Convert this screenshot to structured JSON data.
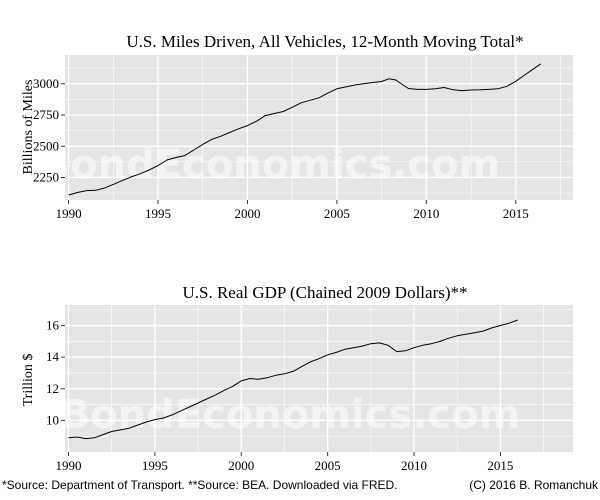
{
  "watermark": "BondEconomics.com",
  "footer": {
    "source": "*Source: Department of Transport. **Source: BEA. Downloaded via FRED.",
    "credit": "(C) 2016 B. Romanchuk"
  },
  "colors": {
    "panel": "#e5e5e5",
    "grid": "#ffffff",
    "line": "#000000"
  },
  "chart_data": [
    {
      "type": "line",
      "title": "U.S. Miles Driven, All Vehicles, 12-Month Moving Total*",
      "xlabel": "",
      "ylabel": "Billions of Miles",
      "xlim": [
        1989.8,
        2018.2
      ],
      "ylim": [
        2070,
        3230
      ],
      "xticks": [
        1990,
        1995,
        2000,
        2005,
        2010,
        2015
      ],
      "yticks": [
        2250,
        2500,
        2750,
        3000
      ],
      "series": [
        {
          "name": "Miles Driven",
          "x": [
            1990.0,
            1990.5,
            1991.0,
            1991.5,
            1992.0,
            1992.5,
            1993.0,
            1993.5,
            1994.0,
            1994.5,
            1995.0,
            1995.5,
            1996.0,
            1996.5,
            1997.0,
            1997.5,
            1998.0,
            1998.5,
            1999.0,
            1999.5,
            2000.0,
            2000.5,
            2001.0,
            2001.5,
            2002.0,
            2002.5,
            2003.0,
            2003.5,
            2004.0,
            2004.5,
            2005.0,
            2005.5,
            2006.0,
            2006.5,
            2007.0,
            2007.5,
            2007.9,
            2008.3,
            2008.7,
            2009.0,
            2009.5,
            2010.0,
            2010.5,
            2011.0,
            2011.5,
            2012.0,
            2012.5,
            2013.0,
            2013.5,
            2014.0,
            2014.5,
            2015.0,
            2015.5,
            2016.0,
            2016.4
          ],
          "y": [
            2110,
            2130,
            2145,
            2148,
            2165,
            2195,
            2225,
            2255,
            2280,
            2310,
            2345,
            2390,
            2410,
            2425,
            2470,
            2515,
            2555,
            2580,
            2610,
            2640,
            2665,
            2700,
            2745,
            2762,
            2778,
            2812,
            2848,
            2868,
            2888,
            2925,
            2960,
            2975,
            2990,
            3000,
            3010,
            3018,
            3040,
            3030,
            2990,
            2962,
            2955,
            2955,
            2960,
            2970,
            2952,
            2945,
            2950,
            2952,
            2955,
            2960,
            2980,
            3020,
            3070,
            3120,
            3160
          ]
        }
      ]
    },
    {
      "type": "line",
      "title": "U.S. Real GDP (Chained 2009 Dollars)**",
      "xlabel": "",
      "ylabel": "Trillion $",
      "xlim": [
        1989.8,
        2019.2
      ],
      "ylim": [
        8.0,
        17.3
      ],
      "xticks": [
        1990,
        1995,
        2000,
        2005,
        2010,
        2015
      ],
      "yticks": [
        10,
        12,
        14,
        16
      ],
      "series": [
        {
          "name": "Real GDP",
          "x": [
            1990.0,
            1990.5,
            1991.0,
            1991.5,
            1992.0,
            1992.5,
            1993.0,
            1993.5,
            1994.0,
            1994.5,
            1995.0,
            1995.5,
            1996.0,
            1996.5,
            1997.0,
            1997.5,
            1998.0,
            1998.5,
            1999.0,
            1999.5,
            2000.0,
            2000.5,
            2001.0,
            2001.5,
            2002.0,
            2002.5,
            2003.0,
            2003.5,
            2004.0,
            2004.5,
            2005.0,
            2005.5,
            2006.0,
            2006.5,
            2007.0,
            2007.5,
            2008.0,
            2008.5,
            2009.0,
            2009.5,
            2010.0,
            2010.5,
            2011.0,
            2011.5,
            2012.0,
            2012.5,
            2013.0,
            2013.5,
            2014.0,
            2014.5,
            2015.0,
            2015.5,
            2016.0
          ],
          "y": [
            8.9,
            8.95,
            8.85,
            8.9,
            9.1,
            9.3,
            9.4,
            9.5,
            9.7,
            9.9,
            10.05,
            10.15,
            10.35,
            10.6,
            10.85,
            11.1,
            11.35,
            11.6,
            11.9,
            12.15,
            12.5,
            12.65,
            12.6,
            12.7,
            12.85,
            12.95,
            13.1,
            13.4,
            13.7,
            13.9,
            14.15,
            14.3,
            14.5,
            14.6,
            14.7,
            14.85,
            14.9,
            14.75,
            14.35,
            14.4,
            14.6,
            14.75,
            14.85,
            15.0,
            15.2,
            15.35,
            15.45,
            15.55,
            15.65,
            15.85,
            16.0,
            16.15,
            16.35
          ]
        }
      ]
    }
  ]
}
